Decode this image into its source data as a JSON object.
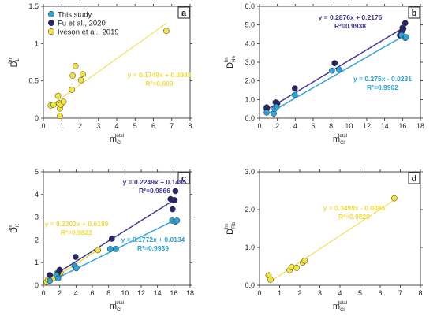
{
  "colors": {
    "this_study": "#29a3d8",
    "fu": "#26256b",
    "iveson": "#f4e33b",
    "axis": "#222222",
    "fit_this_study": "#29a3d8",
    "fit_fu": "#3a3592",
    "fit_iveson": "#f0dc3e"
  },
  "chart_data": [
    {
      "panel": "a",
      "type": "scatter",
      "ylabel": "D",
      "ylabel_sub": "Li",
      "ylabel_sup": "fm",
      "xlabel": "m",
      "xlabel_sub": "Cl",
      "xlabel_sup": "total",
      "xlim": [
        0,
        8
      ],
      "ylim": [
        0,
        1.5
      ],
      "xticks": [
        "0",
        "1",
        "2",
        "3",
        "4",
        "5",
        "6",
        "7",
        "8"
      ],
      "yticks": [
        "0",
        "0.5",
        "1",
        "1.5"
      ],
      "legend": [
        {
          "name": "This study",
          "key": "this_study"
        },
        {
          "name": "Fu et al., 2020",
          "key": "fu"
        },
        {
          "name": "Iveson et al., 2019",
          "key": "iveson"
        }
      ],
      "series": [
        {
          "key": "iveson",
          "points": [
            [
              0.4,
              0.17
            ],
            [
              0.55,
              0.18
            ],
            [
              0.8,
              0.3
            ],
            [
              0.85,
              0.2
            ],
            [
              0.9,
              0.13
            ],
            [
              0.95,
              0.18
            ],
            [
              0.9,
              0.03
            ],
            [
              1.1,
              0.22
            ],
            [
              1.55,
              0.38
            ],
            [
              1.6,
              0.57
            ],
            [
              1.75,
              0.7
            ],
            [
              2.05,
              0.51
            ],
            [
              2.15,
              0.59
            ],
            [
              6.7,
              1.17
            ]
          ]
        }
      ],
      "fits": [
        {
          "key": "iveson",
          "slope": 0.1749,
          "intercept": 0.0983,
          "x_range": [
            0.5,
            6.7
          ],
          "equation": "y = 0.1749x + 0.0983",
          "r2": "R²=0.609"
        }
      ]
    },
    {
      "panel": "b",
      "type": "scatter",
      "ylabel": "D",
      "ylabel_sub": "Na",
      "ylabel_sup": "fm",
      "xlabel": "m",
      "xlabel_sub": "Cl",
      "xlabel_sup": "total",
      "xlim": [
        0,
        18
      ],
      "ylim": [
        0,
        6
      ],
      "xticks": [
        "0",
        "2",
        "4",
        "6",
        "8",
        "10",
        "12",
        "14",
        "16",
        "18"
      ],
      "yticks": [
        "0.0",
        "1.0",
        "2.0",
        "3.0",
        "4.0",
        "5.0",
        "6.0"
      ],
      "series": [
        {
          "key": "fu",
          "points": [
            [
              0.8,
              0.58
            ],
            [
              0.8,
              0.5
            ],
            [
              1.8,
              0.85
            ],
            [
              2.0,
              0.8
            ],
            [
              3.95,
              1.6
            ],
            [
              8.4,
              2.95
            ],
            [
              15.7,
              4.45
            ],
            [
              15.9,
              4.65
            ],
            [
              16.0,
              4.85
            ],
            [
              16.1,
              4.8
            ],
            [
              16.3,
              5.1
            ]
          ]
        },
        {
          "key": "this_study",
          "points": [
            [
              0.8,
              0.3
            ],
            [
              1.6,
              0.25
            ],
            [
              1.7,
              0.5
            ],
            [
              1.9,
              0.6
            ],
            [
              3.95,
              1.25
            ],
            [
              8.1,
              2.55
            ],
            [
              8.9,
              2.6
            ],
            [
              15.9,
              4.45
            ],
            [
              16.3,
              4.3
            ],
            [
              16.4,
              4.35
            ]
          ]
        }
      ],
      "fits": [
        {
          "key": "fu",
          "slope": 0.2876,
          "intercept": 0.2176,
          "x_range": [
            0.8,
            16.3
          ],
          "equation": "y = 0.2876x + 0.2176",
          "r2": "R²=0.9938"
        },
        {
          "key": "this_study",
          "slope": 0.275,
          "intercept": -0.0231,
          "x_range": [
            0.8,
            16.4
          ],
          "equation": "y = 0.275x - 0.0231",
          "r2": "R²=0.9902"
        }
      ]
    },
    {
      "panel": "c",
      "type": "scatter",
      "ylabel": "D",
      "ylabel_sub": "K",
      "ylabel_sup": "fm",
      "xlabel": "m",
      "xlabel_sub": "Cl",
      "xlabel_sup": "total",
      "xlim": [
        0,
        18
      ],
      "ylim": [
        0,
        5
      ],
      "xticks": [
        "0",
        "2",
        "4",
        "6",
        "8",
        "10",
        "12",
        "14",
        "16",
        "18"
      ],
      "yticks": [
        "0",
        "1",
        "2",
        "3",
        "4",
        "5"
      ],
      "series": [
        {
          "key": "iveson",
          "points": [
            [
              0.4,
              0.15
            ],
            [
              0.55,
              0.25
            ],
            [
              0.8,
              0.38
            ],
            [
              1.2,
              0.3
            ],
            [
              1.6,
              0.52
            ],
            [
              1.85,
              0.5
            ],
            [
              2.1,
              0.55
            ],
            [
              6.7,
              1.55
            ]
          ]
        },
        {
          "key": "fu",
          "points": [
            [
              0.8,
              0.45
            ],
            [
              1.8,
              0.55
            ],
            [
              2.0,
              0.68
            ],
            [
              3.95,
              1.25
            ],
            [
              8.4,
              2.05
            ],
            [
              15.6,
              3.8
            ],
            [
              15.85,
              3.35
            ],
            [
              16.0,
              3.75
            ],
            [
              16.2,
              4.15
            ],
            [
              16.1,
              3.75
            ]
          ]
        },
        {
          "key": "this_study",
          "points": [
            [
              0.8,
              0.2
            ],
            [
              1.6,
              0.45
            ],
            [
              1.8,
              0.3
            ],
            [
              3.85,
              0.85
            ],
            [
              4.05,
              0.75
            ],
            [
              8.2,
              1.6
            ],
            [
              8.9,
              1.6
            ],
            [
              15.8,
              2.85
            ],
            [
              16.2,
              2.8
            ],
            [
              16.4,
              2.85
            ]
          ]
        }
      ],
      "fits": [
        {
          "key": "fu",
          "slope": 0.2249,
          "intercept": 0.1495,
          "x_range": [
            0.8,
            16.2
          ],
          "equation": "y = 0.2249x + 0.1495",
          "r2": "R²=0.9866"
        },
        {
          "key": "iveson",
          "slope": 0.2303,
          "intercept": 0.0189,
          "x_range": [
            0.4,
            6.7
          ],
          "equation": "y = 0.2303x + 0.0189",
          "r2": "R²=0.9822"
        },
        {
          "key": "this_study",
          "slope": 0.1772,
          "intercept": 0.0134,
          "x_range": [
            0.8,
            16.4
          ],
          "equation": "y = 0.1772x + 0.0134",
          "r2": "R²=0.9939"
        }
      ]
    },
    {
      "panel": "d",
      "type": "scatter",
      "ylabel": "D",
      "ylabel_sub": "Rb",
      "ylabel_sup": "fm",
      "xlabel": "m",
      "xlabel_sub": "Cl",
      "xlabel_sup": "total",
      "xlim": [
        0,
        8
      ],
      "ylim": [
        0,
        3
      ],
      "xticks": [
        "0",
        "1",
        "2",
        "3",
        "4",
        "5",
        "6",
        "7",
        "8"
      ],
      "yticks": [
        "0.0",
        "1.0",
        "2.0",
        "3.0"
      ],
      "series": [
        {
          "key": "iveson",
          "points": [
            [
              0.45,
              0.26
            ],
            [
              0.55,
              0.15
            ],
            [
              1.5,
              0.4
            ],
            [
              1.6,
              0.48
            ],
            [
              1.85,
              0.46
            ],
            [
              2.15,
              0.6
            ],
            [
              2.25,
              0.65
            ],
            [
              6.7,
              2.3
            ]
          ]
        }
      ],
      "fits": [
        {
          "key": "iveson",
          "slope": 0.3499,
          "intercept": -0.0885,
          "x_range": [
            0.45,
            6.7
          ],
          "equation": "y = 0.3499x - 0.0885",
          "r2": "R²=0.9829"
        }
      ]
    }
  ]
}
